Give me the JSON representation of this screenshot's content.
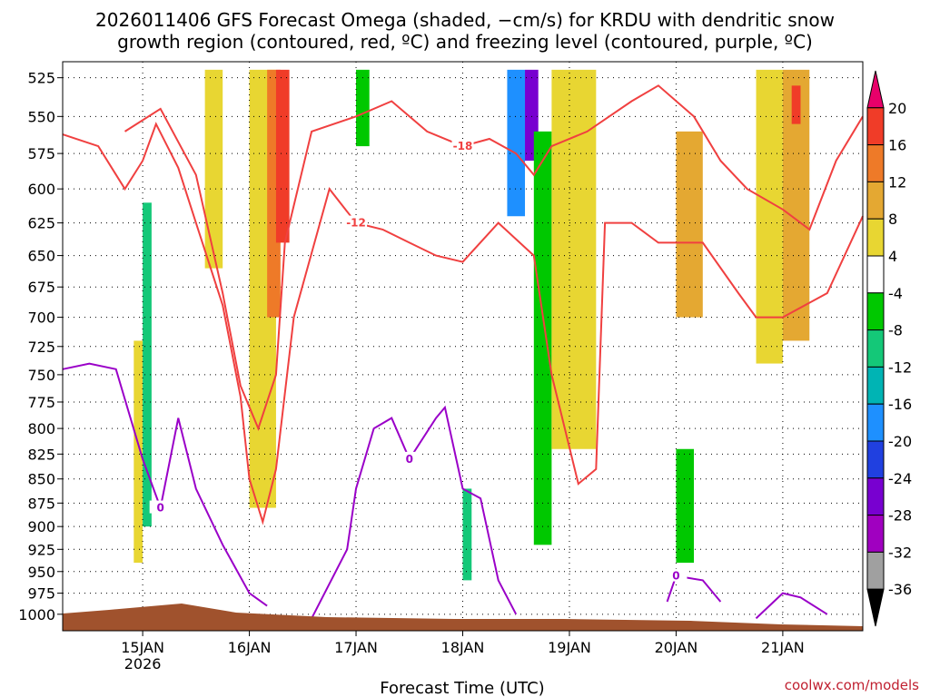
{
  "chart_data": {
    "type": "heatmap",
    "title_line1": "2026011406 GFS Forecast Omega (shaded, −cm/s) for KRDU with dendritic snow",
    "title_line2": "growth region (contoured, red, ºC) and freezing level (contoured, purple, ºC)",
    "xlabel": "Forecast Time (UTC)",
    "credit": "coolwx.com/models",
    "x_range": [
      "2026-01-14T06",
      "2026-01-21T18"
    ],
    "y_axis": {
      "type": "pressure",
      "inverted": true,
      "range": [
        1020,
        515
      ]
    },
    "y_ticks": [
      525,
      550,
      575,
      600,
      625,
      650,
      675,
      700,
      725,
      750,
      775,
      800,
      825,
      850,
      875,
      900,
      925,
      950,
      975,
      1000
    ],
    "x_ticks": [
      {
        "date": "2026-01-15",
        "label": "15JAN",
        "sublabel": "2026"
      },
      {
        "date": "2026-01-16",
        "label": "16JAN",
        "sublabel": ""
      },
      {
        "date": "2026-01-17",
        "label": "17JAN",
        "sublabel": ""
      },
      {
        "date": "2026-01-18",
        "label": "18JAN",
        "sublabel": ""
      },
      {
        "date": "2026-01-19",
        "label": "19JAN",
        "sublabel": ""
      },
      {
        "date": "2026-01-20",
        "label": "20JAN",
        "sublabel": ""
      },
      {
        "date": "2026-01-21",
        "label": "21JAN",
        "sublabel": ""
      }
    ],
    "grid": true,
    "colorbar": {
      "levels": [
        20,
        16,
        12,
        8,
        4,
        -4,
        -8,
        -12,
        -16,
        -20,
        -24,
        -28,
        -32,
        -36
      ],
      "colors": [
        "#e8006a",
        "#f03c28",
        "#ee7a28",
        "#e4a832",
        "#e8d632",
        "#ffffff",
        "#00c800",
        "#14c878",
        "#00b4b4",
        "#1e90ff",
        "#2040e0",
        "#7800d0",
        "#a000c0",
        "#a0a0a0",
        "#000000"
      ]
    },
    "omega_cells": [
      {
        "t0": "2026-01-14T22",
        "t1": "2026-01-15T00",
        "p0": 720,
        "p1": 940,
        "value": 6
      },
      {
        "t0": "2026-01-15T00",
        "t1": "2026-01-15T02",
        "p0": 610,
        "p1": 900,
        "value": -10
      },
      {
        "t0": "2026-01-15T14",
        "t1": "2026-01-15T18",
        "p0": 520,
        "p1": 660,
        "value": 5
      },
      {
        "t0": "2026-01-16T00",
        "t1": "2026-01-16T06",
        "p0": 520,
        "p1": 880,
        "value": 7
      },
      {
        "t0": "2026-01-16T04",
        "t1": "2026-01-16T07",
        "p0": 520,
        "p1": 700,
        "value": 13
      },
      {
        "t0": "2026-01-16T06",
        "t1": "2026-01-16T09",
        "p0": 520,
        "p1": 640,
        "value": 18
      },
      {
        "t0": "2026-01-17T00",
        "t1": "2026-01-17T03",
        "p0": 520,
        "p1": 570,
        "value": -7
      },
      {
        "t0": "2026-01-18T00",
        "t1": "2026-01-18T02",
        "p0": 860,
        "p1": 960,
        "value": -9
      },
      {
        "t0": "2026-01-18T10",
        "t1": "2026-01-18T14",
        "p0": 520,
        "p1": 620,
        "value": -18
      },
      {
        "t0": "2026-01-18T14",
        "t1": "2026-01-18T17",
        "p0": 520,
        "p1": 580,
        "value": -26
      },
      {
        "t0": "2026-01-18T16",
        "t1": "2026-01-18T20",
        "p0": 560,
        "p1": 920,
        "value": -8
      },
      {
        "t0": "2026-01-18T20",
        "t1": "2026-01-19T06",
        "p0": 520,
        "p1": 820,
        "value": 5
      },
      {
        "t0": "2026-01-20T00",
        "t1": "2026-01-20T06",
        "p0": 560,
        "p1": 700,
        "value": 9
      },
      {
        "t0": "2026-01-20T00",
        "t1": "2026-01-20T04",
        "p0": 820,
        "p1": 940,
        "value": -7
      },
      {
        "t0": "2026-01-20T18",
        "t1": "2026-01-21T00",
        "p0": 520,
        "p1": 740,
        "value": 5
      },
      {
        "t0": "2026-01-21T00",
        "t1": "2026-01-21T06",
        "p0": 520,
        "p1": 720,
        "value": 11
      },
      {
        "t0": "2026-01-21T02",
        "t1": "2026-01-21T04",
        "p0": 530,
        "p1": 555,
        "value": 16
      }
    ],
    "contours_dgz": [
      {
        "label": "-12",
        "points": [
          [
            "2026-01-14T06",
            562
          ],
          [
            "2026-01-14T14",
            570
          ],
          [
            "2026-01-14T20",
            600
          ],
          [
            "2026-01-15T00",
            580
          ],
          [
            "2026-01-15T03",
            555
          ],
          [
            "2026-01-15T08",
            585
          ],
          [
            "2026-01-15T12",
            625
          ],
          [
            "2026-01-15T18",
            690
          ],
          [
            "2026-01-15T22",
            770
          ],
          [
            "2026-01-16T00",
            850
          ],
          [
            "2026-01-16T03",
            895
          ],
          [
            "2026-01-16T06",
            840
          ],
          [
            "2026-01-16T10",
            700
          ],
          [
            "2026-01-16T18",
            600
          ],
          [
            "2026-01-17T00",
            625
          ],
          [
            "2026-01-17T06",
            630
          ],
          [
            "2026-01-17T12",
            640
          ],
          [
            "2026-01-17T18",
            650
          ],
          [
            "2026-01-18T00",
            655
          ],
          [
            "2026-01-18T08",
            625
          ],
          [
            "2026-01-18T16",
            650
          ],
          [
            "2026-01-18T20",
            750
          ],
          [
            "2026-01-19T02",
            855
          ],
          [
            "2026-01-19T06",
            840
          ],
          [
            "2026-01-19T08",
            625
          ],
          [
            "2026-01-19T14",
            625
          ],
          [
            "2026-01-19T20",
            640
          ],
          [
            "2026-01-20T06",
            640
          ],
          [
            "2026-01-20T14",
            680
          ],
          [
            "2026-01-20T18",
            700
          ],
          [
            "2026-01-21T00",
            700
          ],
          [
            "2026-01-21T10",
            680
          ],
          [
            "2026-01-21T18",
            620
          ]
        ]
      },
      {
        "label": "-18",
        "points": [
          [
            "2026-01-14T20",
            560
          ],
          [
            "2026-01-15T04",
            545
          ],
          [
            "2026-01-15T12",
            590
          ],
          [
            "2026-01-15T18",
            680
          ],
          [
            "2026-01-15T22",
            760
          ],
          [
            "2026-01-16T02",
            800
          ],
          [
            "2026-01-16T06",
            750
          ],
          [
            "2026-01-16T08",
            640
          ],
          [
            "2026-01-16T14",
            560
          ],
          [
            "2026-01-17T00",
            550
          ],
          [
            "2026-01-17T08",
            540
          ],
          [
            "2026-01-17T16",
            560
          ],
          [
            "2026-01-18T00",
            570
          ],
          [
            "2026-01-18T06",
            565
          ],
          [
            "2026-01-18T12",
            575
          ],
          [
            "2026-01-18T16",
            590
          ],
          [
            "2026-01-18T20",
            570
          ],
          [
            "2026-01-19T04",
            560
          ],
          [
            "2026-01-19T14",
            540
          ],
          [
            "2026-01-19T20",
            530
          ],
          [
            "2026-01-20T04",
            550
          ],
          [
            "2026-01-20T10",
            580
          ],
          [
            "2026-01-20T16",
            600
          ],
          [
            "2026-01-21T00",
            615
          ],
          [
            "2026-01-21T06",
            630
          ],
          [
            "2026-01-21T12",
            580
          ],
          [
            "2026-01-21T18",
            550
          ]
        ]
      }
    ],
    "contours_freezing": [
      {
        "label": "0",
        "points": [
          [
            "2026-01-14T06",
            745
          ],
          [
            "2026-01-14T12",
            740
          ],
          [
            "2026-01-14T18",
            745
          ],
          [
            "2026-01-15T00",
            830
          ],
          [
            "2026-01-15T04",
            880
          ],
          [
            "2026-01-15T08",
            790
          ],
          [
            "2026-01-15T12",
            860
          ],
          [
            "2026-01-15T18",
            920
          ],
          [
            "2026-01-16T00",
            975
          ],
          [
            "2026-01-16T04",
            990
          ]
        ]
      },
      {
        "label": "0",
        "points": [
          [
            "2026-01-16T14",
            1005
          ],
          [
            "2026-01-16T22",
            925
          ],
          [
            "2026-01-17T00",
            860
          ],
          [
            "2026-01-17T04",
            800
          ],
          [
            "2026-01-17T08",
            790
          ],
          [
            "2026-01-17T12",
            830
          ],
          [
            "2026-01-17T18",
            790
          ],
          [
            "2026-01-17T20",
            780
          ],
          [
            "2026-01-18T00",
            860
          ],
          [
            "2026-01-18T04",
            870
          ],
          [
            "2026-01-18T08",
            960
          ],
          [
            "2026-01-18T12",
            1000
          ]
        ]
      },
      {
        "label": "0",
        "points": [
          [
            "2026-01-19T22",
            985
          ],
          [
            "2026-01-20T00",
            955
          ],
          [
            "2026-01-20T06",
            960
          ],
          [
            "2026-01-20T10",
            985
          ]
        ]
      },
      {
        "label": "",
        "points": [
          [
            "2026-01-20T18",
            1005
          ],
          [
            "2026-01-21T00",
            975
          ],
          [
            "2026-01-21T04",
            980
          ],
          [
            "2026-01-21T10",
            1000
          ]
        ]
      }
    ]
  }
}
